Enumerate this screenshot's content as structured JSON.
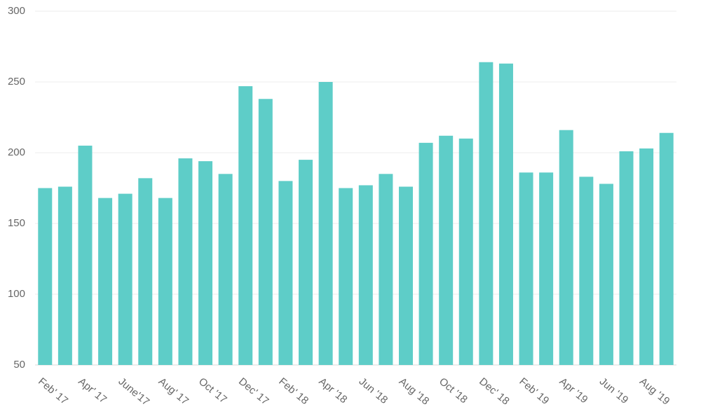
{
  "chart_data": {
    "type": "bar",
    "categories": [
      "Feb' 17",
      null,
      "Apr' 17",
      null,
      "June'17",
      null,
      "Aug' 17",
      null,
      "Oct '17",
      null,
      "Dec' 17",
      null,
      "Feb' 18",
      null,
      "Apr '18",
      null,
      "Jun '18",
      null,
      "Aug '18",
      null,
      "Oct '18",
      null,
      "Dec' 18",
      null,
      "Feb' 19",
      null,
      "Apr '19",
      null,
      "Jun '19",
      null,
      "Aug '19",
      null
    ],
    "values": [
      175,
      176,
      205,
      168,
      171,
      182,
      168,
      196,
      194,
      185,
      247,
      238,
      180,
      195,
      250,
      175,
      177,
      185,
      176,
      207,
      212,
      210,
      264,
      263,
      186,
      186,
      216,
      183,
      178,
      201,
      203,
      214
    ],
    "color": "#5ecdc8",
    "ylim": [
      50,
      300
    ],
    "yticks": [
      50,
      100,
      150,
      200,
      250,
      300
    ],
    "grid": true
  }
}
